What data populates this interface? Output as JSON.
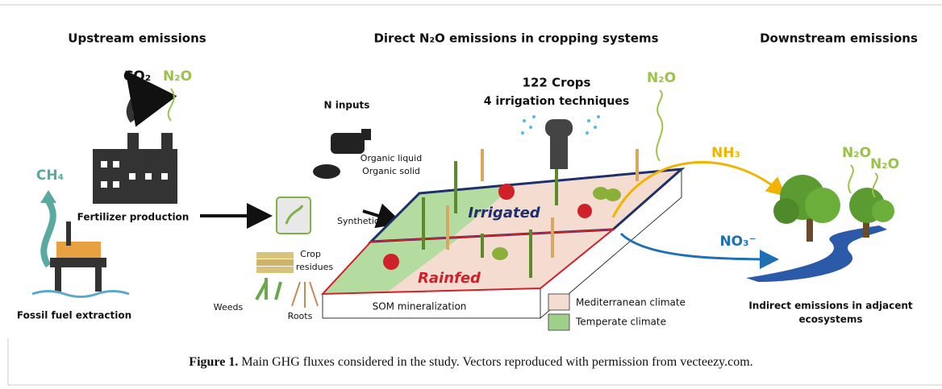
{
  "headings": {
    "upstream": "Upstream emissions",
    "direct": "Direct N₂O emissions in cropping systems",
    "downstream": "Downstream emissions"
  },
  "upstream": {
    "co2": "CO₂",
    "n2o": "N₂O",
    "ch4": "CH₄",
    "fertilizer": "Fertilizer production",
    "fossil": "Fossil fuel extraction"
  },
  "direct": {
    "crops": "122 Crops",
    "irrigation": "4 irrigation techniques",
    "n2o": "N₂O",
    "n_inputs": "N inputs",
    "organic": [
      "Organic liquid",
      "Organic solid"
    ],
    "synthetic": "Synthetic",
    "crop_residues": [
      "Crop",
      "residues"
    ],
    "weeds": "Weeds",
    "roots": "Roots",
    "irrigated": "Irrigated",
    "rainfed": "Rainfed",
    "som": "SOM mineralization"
  },
  "legend": [
    "Mediterranean climate",
    "Temperate climate"
  ],
  "downstream": {
    "nh3": "NH₃",
    "no3": "NO₃⁻",
    "n2o_1": "N₂O",
    "n2o_2": "N₂O",
    "indirect": [
      "Indirect emissions in adjacent",
      "ecosystems"
    ]
  },
  "caption": {
    "label": "Figure 1.",
    "text": " Main GHG fluxes considered in the study. Vectors reproduced with permission from vecteezy.com."
  }
}
